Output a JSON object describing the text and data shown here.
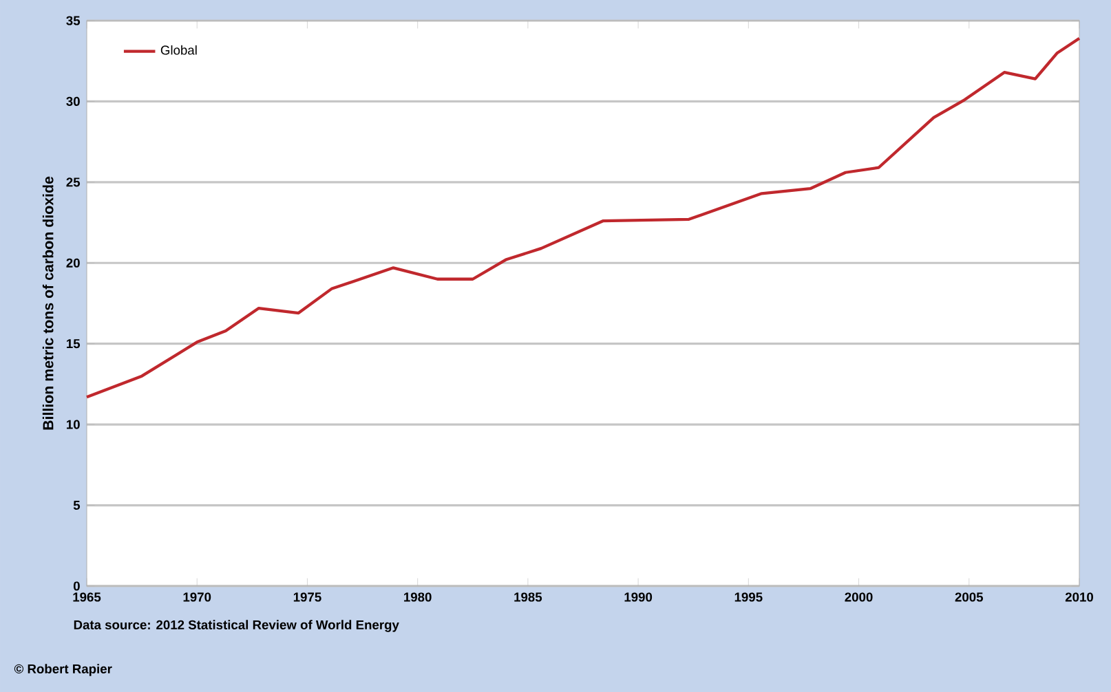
{
  "chart_data": {
    "type": "line",
    "ylabel": "Billion metric tons of carbon dioxide",
    "annotations": [
      "Data source: 2012 Statistical Review of World Energy",
      "© Robert Rapier"
    ],
    "x": [
      1965,
      1967.5,
      1970,
      1971.3,
      1972.8,
      1974.6,
      1976.1,
      1978.9,
      1980.9,
      1982.5,
      1984,
      1985.6,
      1988.4,
      1992.3,
      1995.6,
      1997.8,
      1999.4,
      2000.9,
      2003.4,
      2004.8,
      2006.6,
      2008,
      2009,
      2010
    ],
    "series": [
      {
        "name": "Global",
        "color": "#c0282d",
        "values": [
          11.7,
          13.0,
          15.1,
          15.8,
          17.2,
          16.9,
          18.4,
          19.7,
          19.0,
          19.0,
          20.2,
          20.9,
          22.6,
          22.7,
          24.3,
          24.6,
          25.6,
          25.9,
          29.0,
          30.1,
          31.8,
          31.4,
          33.0,
          33.9
        ]
      }
    ],
    "xlim": [
      1965,
      2010
    ],
    "ylim": [
      0,
      35
    ],
    "xticks": [
      1965,
      1970,
      1975,
      1980,
      1985,
      1990,
      1995,
      2000,
      2005,
      2010
    ],
    "yticks": [
      0,
      5,
      10,
      15,
      20,
      25,
      30,
      35
    ],
    "grid": "y",
    "legend": "top left"
  }
}
